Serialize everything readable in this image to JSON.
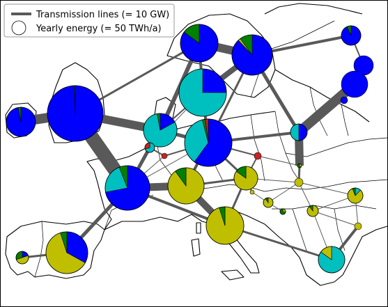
{
  "legend": {
    "lines_label": "Transmission lines (= 10 GW)",
    "energy_label": "Yearly energy (= 50 TWh/a)"
  },
  "colors": {
    "wind": "#0000ff",
    "offshore": "#00bfbf",
    "solar": "#bfbf00",
    "hydro": "#008000",
    "gas": "#cc2222",
    "line": "#595959"
  },
  "nodes": [
    {
      "id": "IE",
      "shares": {
        "wind": 0.97,
        "hydro": 0.03
      }
    },
    {
      "id": "GB",
      "shares": {
        "wind": 0.995,
        "hydro": 0.005
      }
    },
    {
      "id": "NO",
      "shares": {
        "wind": 0.85,
        "hydro": 0.15
      }
    },
    {
      "id": "SE",
      "shares": {
        "wind": 0.88,
        "hydro": 0.1,
        "solar": 0.02
      }
    },
    {
      "id": "FI",
      "shares": {
        "wind": 0.93,
        "hydro": 0.07
      }
    },
    {
      "id": "EE",
      "shares": {
        "wind": 1.0
      }
    },
    {
      "id": "LV",
      "shares": {
        "wind": 1.0
      }
    },
    {
      "id": "LT",
      "shares": {
        "wind": 1.0
      }
    },
    {
      "id": "DK",
      "shares": {
        "offshore": 0.75,
        "wind": 0.25
      }
    },
    {
      "id": "NL",
      "shares": {
        "offshore": 0.8,
        "wind": 0.17,
        "hydro": 0.03
      }
    },
    {
      "id": "BE",
      "shares": {
        "offshore": 0.7,
        "gas": 0.3
      }
    },
    {
      "id": "LU",
      "shares": {
        "gas": 1.0
      }
    },
    {
      "id": "DE",
      "shares": {
        "wind": 0.6,
        "offshore": 0.36,
        "gas": 0.02,
        "hydro": 0.02
      }
    },
    {
      "id": "PL",
      "shares": {
        "wind": 0.5,
        "offshore": 0.5
      }
    },
    {
      "id": "CZ",
      "shares": {
        "gas": 1.0
      }
    },
    {
      "id": "SK",
      "shares": {
        "hydro": 0.6,
        "solar": 0.4
      }
    },
    {
      "id": "HU",
      "shares": {
        "solar": 1.0
      }
    },
    {
      "id": "FR",
      "shares": {
        "wind": 0.72,
        "offshore": 0.22,
        "hydro": 0.06
      }
    },
    {
      "id": "CH",
      "shares": {
        "solar": 0.9,
        "hydro": 0.1
      }
    },
    {
      "id": "AT",
      "shares": {
        "solar": 0.85,
        "hydro": 0.15
      }
    },
    {
      "id": "IT",
      "shares": {
        "solar": 0.95,
        "hydro": 0.05
      }
    },
    {
      "id": "SI",
      "shares": {
        "solar": 1.0
      }
    },
    {
      "id": "HR",
      "shares": {
        "solar": 0.9,
        "hydro": 0.1
      }
    },
    {
      "id": "BA",
      "shares": {
        "hydro": 0.7,
        "solar": 0.3
      }
    },
    {
      "id": "RS",
      "shares": {
        "solar": 0.9,
        "hydro": 0.1
      }
    },
    {
      "id": "RO",
      "shares": {
        "solar": 0.82,
        "offshore": 0.12,
        "hydro": 0.06
      }
    },
    {
      "id": "BG",
      "shares": {
        "solar": 1.0
      }
    },
    {
      "id": "GR",
      "shares": {
        "offshore": 0.85,
        "solar": 0.15
      }
    },
    {
      "id": "ES",
      "shares": {
        "solar": 0.62,
        "wind": 0.33,
        "hydro": 0.05
      }
    },
    {
      "id": "PT",
      "shares": {
        "solar": 0.5,
        "hydro": 0.3,
        "wind": 0.2
      }
    }
  ]
}
